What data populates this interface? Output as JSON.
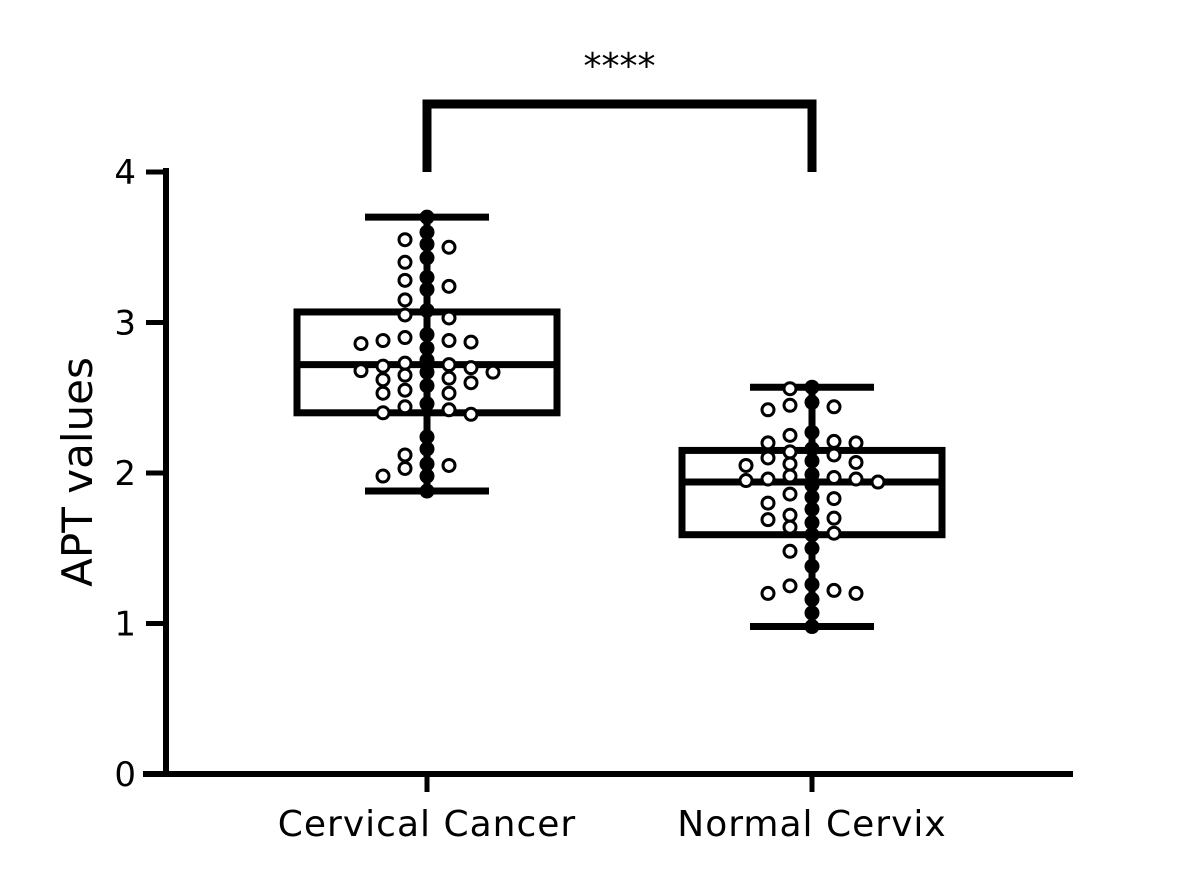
{
  "chart_data": {
    "type": "box",
    "title": "",
    "xlabel": "",
    "ylabel": "APT values",
    "ylim": [
      0,
      4
    ],
    "yticks": [
      "0",
      "1",
      "2",
      "3",
      "4"
    ],
    "categories": [
      "Cervical Cancer",
      "Normal Cervix"
    ],
    "boxes": [
      {
        "category": "Cervical Cancer",
        "min": 1.88,
        "q1": 2.4,
        "median": 2.72,
        "q3": 3.07,
        "max": 3.7,
        "points": [
          3.7,
          3.6,
          3.55,
          3.52,
          3.5,
          3.43,
          3.4,
          3.3,
          3.28,
          3.24,
          3.22,
          3.15,
          3.08,
          3.05,
          3.03,
          2.92,
          2.9,
          2.88,
          2.88,
          2.87,
          2.86,
          2.83,
          2.75,
          2.73,
          2.72,
          2.71,
          2.7,
          2.68,
          2.67,
          2.67,
          2.65,
          2.63,
          2.62,
          2.6,
          2.58,
          2.55,
          2.53,
          2.53,
          2.46,
          2.44,
          2.42,
          2.4,
          2.39,
          2.24,
          2.16,
          2.12,
          2.06,
          2.05,
          2.03,
          1.98,
          1.98,
          1.88
        ]
      },
      {
        "category": "Normal Cervix",
        "min": 0.98,
        "q1": 1.59,
        "median": 1.94,
        "q3": 2.15,
        "max": 2.57,
        "points": [
          2.57,
          2.56,
          2.47,
          2.45,
          2.44,
          2.42,
          2.27,
          2.25,
          2.21,
          2.2,
          2.2,
          2.16,
          2.14,
          2.12,
          2.1,
          2.08,
          2.07,
          2.06,
          2.05,
          1.99,
          1.98,
          1.97,
          1.96,
          1.96,
          1.95,
          1.94,
          1.93,
          1.92,
          1.86,
          1.84,
          1.83,
          1.8,
          1.76,
          1.72,
          1.7,
          1.69,
          1.67,
          1.64,
          1.6,
          1.59,
          1.5,
          1.48,
          1.38,
          1.26,
          1.25,
          1.22,
          1.2,
          1.2,
          1.16,
          1.07,
          0.98
        ]
      }
    ],
    "significance": {
      "label": "****",
      "between": [
        "Cervical Cancer",
        "Normal Cervix"
      ]
    },
    "grid": false,
    "legend": "none"
  }
}
